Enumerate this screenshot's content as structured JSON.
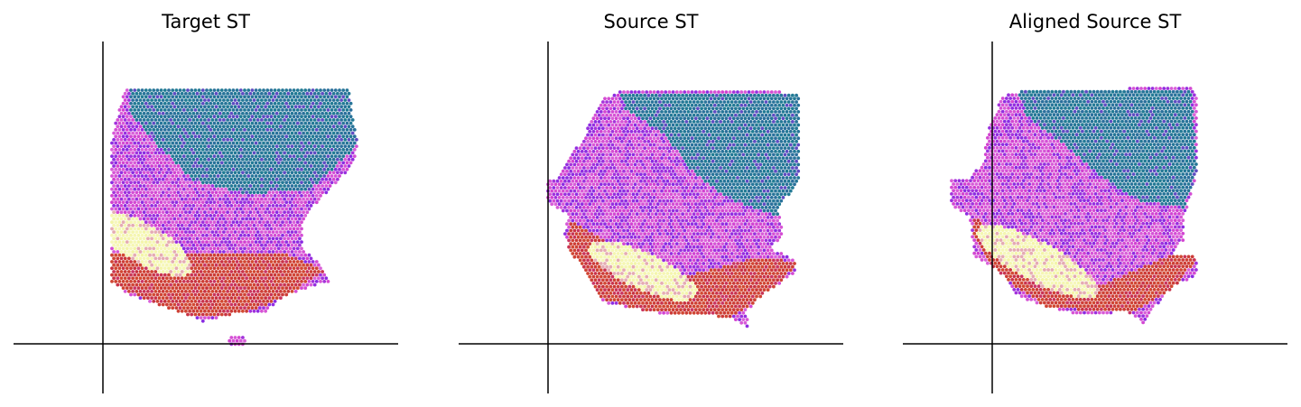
{
  "chart_data": [
    {
      "type": "scatter",
      "title": "Target ST",
      "shape": "target",
      "x_axis_at": 0,
      "y_axis_at": 0,
      "xlim": [
        -0.24,
        0.8
      ],
      "ylim": [
        -0.17,
        1.0
      ],
      "colormap": "spatial expression blend (teal / violet / magenta / red / pale-yellow)",
      "legend": "none",
      "grid": false
    },
    {
      "type": "scatter",
      "title": "Source ST",
      "shape": "source",
      "x_axis_at": 0,
      "y_axis_at": 0,
      "xlim": [
        -0.24,
        0.8
      ],
      "ylim": [
        -0.17,
        1.0
      ],
      "colormap": "spatial expression blend (teal / violet / magenta / red / pale-yellow)",
      "legend": "none",
      "grid": false
    },
    {
      "type": "scatter",
      "title": "Aligned Source ST",
      "shape": "aligned",
      "x_axis_at": 0,
      "y_axis_at": 0,
      "xlim": [
        -0.24,
        0.8
      ],
      "ylim": [
        -0.17,
        1.0
      ],
      "colormap": "spatial expression blend (teal / violet / magenta / red / pale-yellow)",
      "legend": "none",
      "grid": false
    }
  ],
  "colors": {
    "teal": "#1f7e92",
    "violet": "#8a2be2",
    "magenta": "#d13fd0",
    "red": "#c8323c",
    "pale_yellow": "#f2f4a0",
    "axis": "#000000"
  }
}
